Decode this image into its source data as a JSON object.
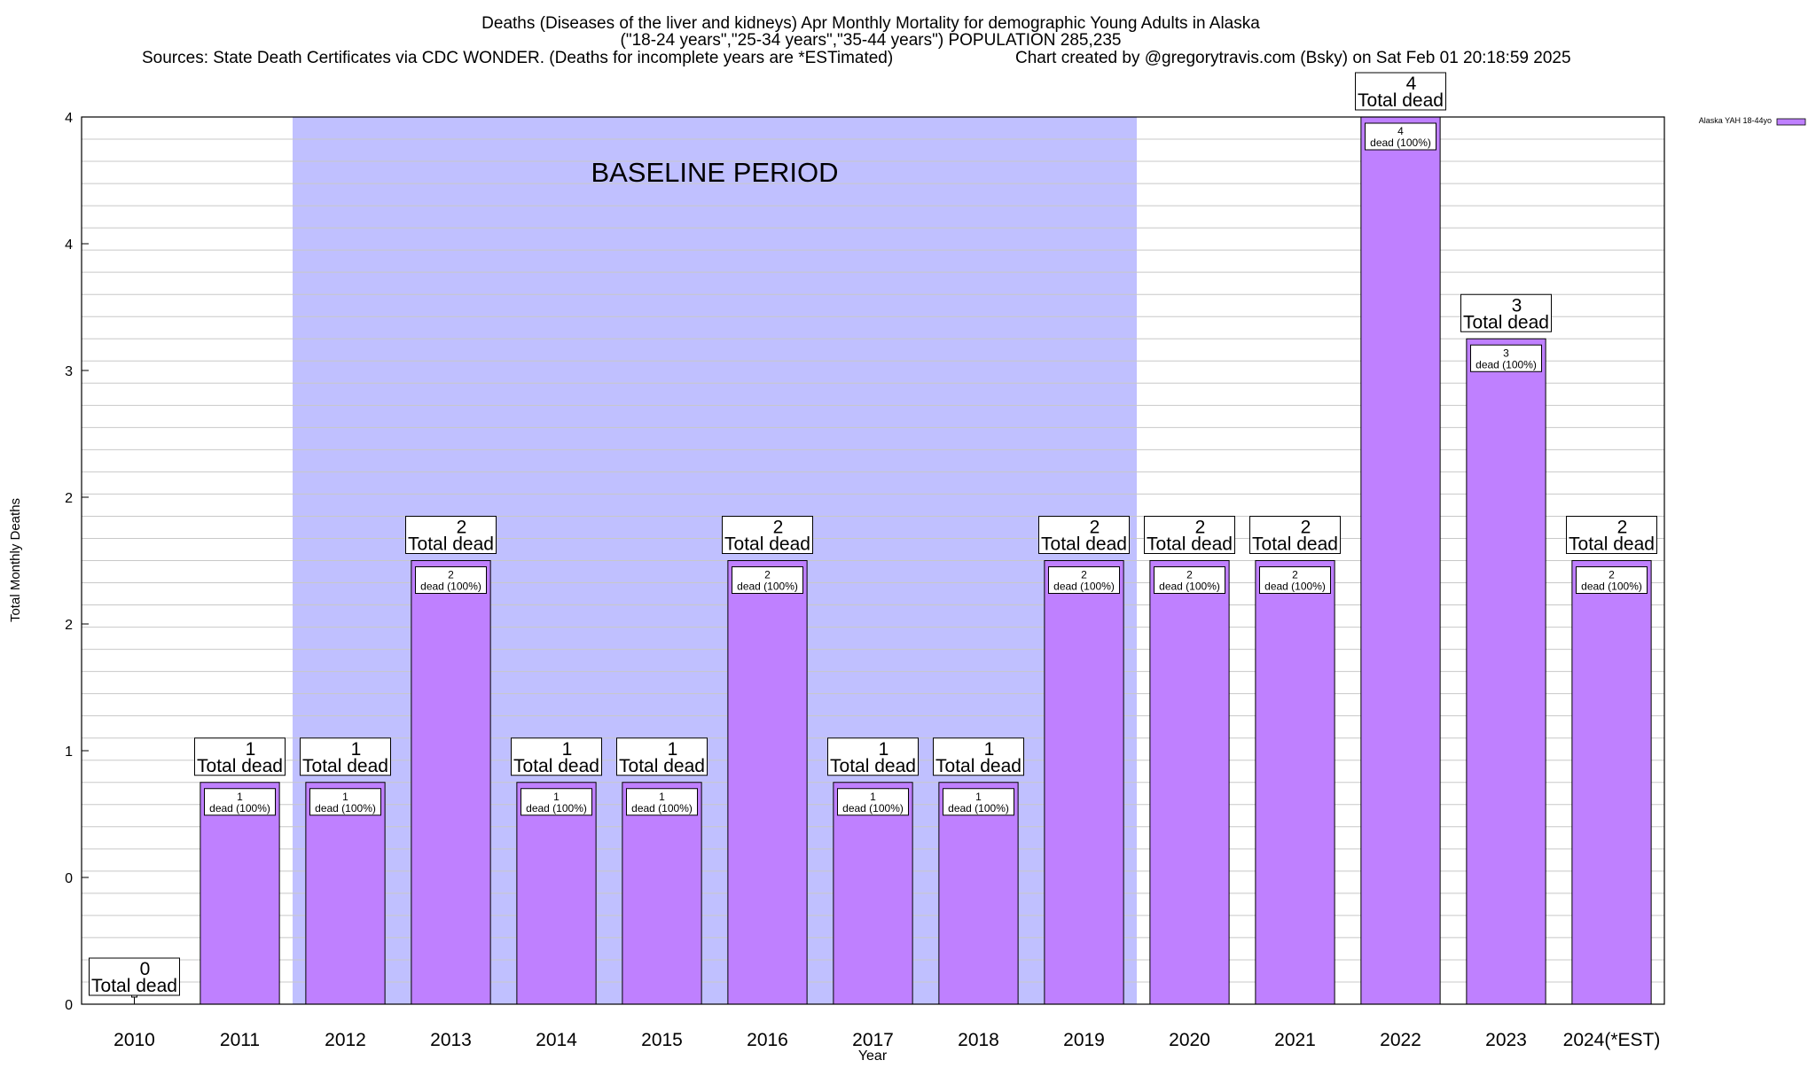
{
  "chart_data": {
    "type": "bar",
    "title_lines": [
      "Deaths (Diseases of the liver and kidneys) Apr Monthly Mortality for demographic Young Adults in Alaska",
      "(\"18-24 years\",\"25-34 years\",\"35-44 years\") POPULATION 285,235"
    ],
    "sources_text": "Sources: State Death Certificates via CDC WONDER. (Deaths for incomplete years are *ESTimated)",
    "credit_text": "Chart created by @gregorytravis.com (Bsky) on Sat Feb 01 20:18:59 2025",
    "xlabel": "Year",
    "ylabel": "Total Monthly Deaths",
    "ylim": [
      0,
      4
    ],
    "y_tick_labels": [
      "0",
      "0",
      "1",
      "2",
      "2",
      "3",
      "4",
      "4"
    ],
    "categories": [
      "2010",
      "2011",
      "2012",
      "2013",
      "2014",
      "2015",
      "2016",
      "2017",
      "2018",
      "2019",
      "2020",
      "2021",
      "2022",
      "2023",
      "2024(*EST)"
    ],
    "series": [
      {
        "name": "Alaska YAH 18-44yo",
        "values": [
          0,
          1,
          1,
          2,
          1,
          1,
          2,
          1,
          1,
          2,
          2,
          2,
          4,
          3,
          2
        ]
      }
    ],
    "total_label": "Total dead",
    "inner_label_suffix": "dead (100%)",
    "baseline": {
      "label": "BASELINE PERIOD",
      "start": "2012",
      "end": "2019"
    },
    "legend": {
      "label": "Alaska YAH 18-44yo",
      "placement": "top-right"
    },
    "grid": true
  },
  "colors": {
    "bar": "#bf80ff",
    "baseline": "#c0c0ff",
    "grid": "#c8c8c8"
  }
}
